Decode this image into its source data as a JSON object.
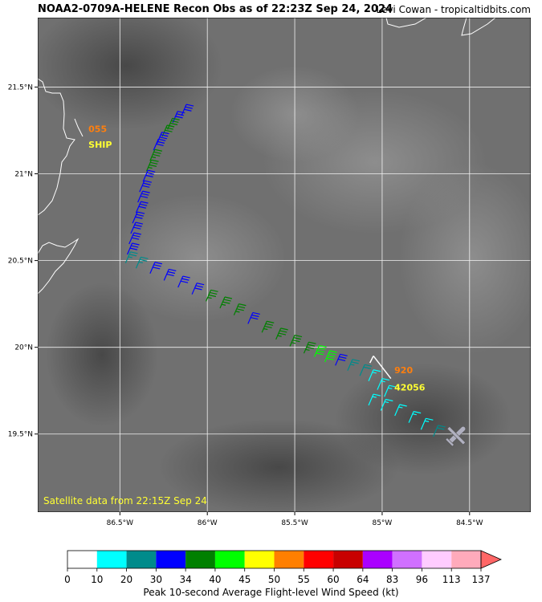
{
  "header": {
    "title": "NOAA2-0709A-HELENE Recon Obs as of 22:23Z Sep 24, 2024",
    "credit": "Levi Cowan - tropicaltidbits.com"
  },
  "map": {
    "satellite_label": "Satellite data from 22:15Z Sep 24",
    "lon_range": [
      -86.97,
      -84.15
    ],
    "lat_range": [
      19.05,
      21.9
    ],
    "lon_ticks": [
      {
        "value": -86.5,
        "label": "86.5°W"
      },
      {
        "value": -86.0,
        "label": "86°W"
      },
      {
        "value": -85.5,
        "label": "85.5°W"
      },
      {
        "value": -85.0,
        "label": "85°W"
      },
      {
        "value": -84.5,
        "label": "84.5°W"
      }
    ],
    "lat_ticks": [
      {
        "value": 21.5,
        "label": "21.5°N"
      },
      {
        "value": 21.0,
        "label": "21°N"
      },
      {
        "value": 20.5,
        "label": "20.5°N"
      },
      {
        "value": 20.0,
        "label": "20°N"
      },
      {
        "value": 19.5,
        "label": "19.5°N"
      }
    ],
    "station_labels": [
      {
        "text": "055",
        "color": "#ff7f0e",
        "lon": -86.68,
        "lat": 21.24
      },
      {
        "text": "SHIP",
        "color": "#ffff33",
        "lon": -86.68,
        "lat": 21.15
      },
      {
        "text": "920",
        "color": "#ff7f0e",
        "lon": -84.93,
        "lat": 19.85
      },
      {
        "text": "42056",
        "color": "#ffff33",
        "lon": -84.93,
        "lat": 19.75
      }
    ],
    "flight_track": [
      {
        "lon": -86.12,
        "lat": 21.4,
        "wind_kt": 31
      },
      {
        "lon": -86.17,
        "lat": 21.36,
        "wind_kt": 31
      },
      {
        "lon": -86.2,
        "lat": 21.32,
        "wind_kt": 35
      },
      {
        "lon": -86.23,
        "lat": 21.28,
        "wind_kt": 35
      },
      {
        "lon": -86.26,
        "lat": 21.24,
        "wind_kt": 31
      },
      {
        "lon": -86.28,
        "lat": 21.2,
        "wind_kt": 31
      },
      {
        "lon": -86.3,
        "lat": 21.14,
        "wind_kt": 35
      },
      {
        "lon": -86.32,
        "lat": 21.08,
        "wind_kt": 35
      },
      {
        "lon": -86.34,
        "lat": 21.02,
        "wind_kt": 32
      },
      {
        "lon": -86.36,
        "lat": 20.96,
        "wind_kt": 31
      },
      {
        "lon": -86.37,
        "lat": 20.9,
        "wind_kt": 31
      },
      {
        "lon": -86.38,
        "lat": 20.84,
        "wind_kt": 31
      },
      {
        "lon": -86.4,
        "lat": 20.78,
        "wind_kt": 31
      },
      {
        "lon": -86.41,
        "lat": 20.72,
        "wind_kt": 31
      },
      {
        "lon": -86.42,
        "lat": 20.66,
        "wind_kt": 31
      },
      {
        "lon": -86.43,
        "lat": 20.6,
        "wind_kt": 31
      },
      {
        "lon": -86.44,
        "lat": 20.55,
        "wind_kt": 28
      },
      {
        "lon": -86.38,
        "lat": 20.52,
        "wind_kt": 25
      },
      {
        "lon": -86.3,
        "lat": 20.49,
        "wind_kt": 31
      },
      {
        "lon": -86.22,
        "lat": 20.45,
        "wind_kt": 31
      },
      {
        "lon": -86.14,
        "lat": 20.41,
        "wind_kt": 31
      },
      {
        "lon": -86.06,
        "lat": 20.37,
        "wind_kt": 32
      },
      {
        "lon": -85.98,
        "lat": 20.33,
        "wind_kt": 35
      },
      {
        "lon": -85.9,
        "lat": 20.29,
        "wind_kt": 35
      },
      {
        "lon": -85.82,
        "lat": 20.25,
        "wind_kt": 35
      },
      {
        "lon": -85.74,
        "lat": 20.2,
        "wind_kt": 31
      },
      {
        "lon": -85.66,
        "lat": 20.15,
        "wind_kt": 35
      },
      {
        "lon": -85.58,
        "lat": 20.11,
        "wind_kt": 35
      },
      {
        "lon": -85.5,
        "lat": 20.07,
        "wind_kt": 35
      },
      {
        "lon": -85.42,
        "lat": 20.03,
        "wind_kt": 35
      },
      {
        "lon": -85.36,
        "lat": 20.01,
        "wind_kt": 42
      },
      {
        "lon": -85.3,
        "lat": 19.98,
        "wind_kt": 42
      },
      {
        "lon": -85.24,
        "lat": 19.96,
        "wind_kt": 31
      },
      {
        "lon": -85.17,
        "lat": 19.93,
        "wind_kt": 25
      },
      {
        "lon": -85.1,
        "lat": 19.9,
        "wind_kt": 22
      },
      {
        "lon": -85.05,
        "lat": 19.87,
        "wind_kt": 16
      },
      {
        "lon": -85.0,
        "lat": 19.82,
        "wind_kt": 16
      },
      {
        "lon": -84.96,
        "lat": 19.78,
        "wind_kt": 16
      },
      {
        "lon": -85.05,
        "lat": 19.73,
        "wind_kt": 16
      },
      {
        "lon": -84.98,
        "lat": 19.7,
        "wind_kt": 16
      },
      {
        "lon": -84.9,
        "lat": 19.67,
        "wind_kt": 16
      },
      {
        "lon": -84.82,
        "lat": 19.63,
        "wind_kt": 16
      },
      {
        "lon": -84.75,
        "lat": 19.59,
        "wind_kt": 16
      },
      {
        "lon": -84.68,
        "lat": 19.55,
        "wind_kt": 22
      }
    ]
  },
  "colorbar": {
    "title": "Peak 10-second Average Flight-level Wind Speed (kt)",
    "ticks": [
      "0",
      "10",
      "20",
      "30",
      "34",
      "40",
      "45",
      "50",
      "55",
      "60",
      "64",
      "83",
      "96",
      "113",
      "137"
    ],
    "colors": [
      "#ffffff",
      "#00ffff",
      "#008b8b",
      "#0000ff",
      "#008000",
      "#00ff00",
      "#ffff00",
      "#ff7f00",
      "#ff0000",
      "#c80000",
      "#aa00ff",
      "#d070ff",
      "#ffccff",
      "#ffaabb"
    ],
    "extend_color": "#ff6666"
  }
}
